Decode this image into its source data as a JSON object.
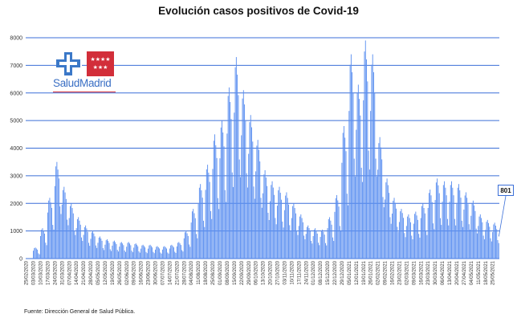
{
  "title": "Evolución casos positivos de Covid-19",
  "source": "Fuente: Dirección General de Salud Pública.",
  "logo": {
    "text": "SaludMadrid",
    "colors": {
      "cross_blue": "#3b78c8",
      "flag_red": "#d22e3a"
    }
  },
  "colors": {
    "bar": "#5b8ff0",
    "gridline": "#3b6fd8",
    "axis_text": "#333333"
  },
  "chart_data": {
    "type": "bar",
    "title": "Evolución casos positivos de Covid-19",
    "xlabel": "",
    "ylabel": "",
    "ylim": [
      0,
      8000
    ],
    "yticks": [
      "0",
      "1000",
      "2000",
      "3000",
      "4000",
      "5000",
      "6000",
      "7000",
      "8000"
    ],
    "x_tick_labels": [
      "25/02/2020",
      "03/03/2020",
      "10/03/2020",
      "17/03/2020",
      "24/03/2020",
      "31/03/2020",
      "07/04/2020",
      "14/04/2020",
      "21/04/2020",
      "28/04/2020",
      "05/05/2020",
      "12/05/2020",
      "19/05/2020",
      "26/05/2020",
      "02/06/2020",
      "09/06/2020",
      "16/06/2020",
      "23/06/2020",
      "30/06/2020",
      "07/07/2020",
      "14/07/2020",
      "21/07/2020",
      "28/07/2020",
      "04/08/2020",
      "11/08/2020",
      "18/08/2020",
      "25/08/2020",
      "01/09/2020",
      "08/09/2020",
      "15/09/2020",
      "22/09/2020",
      "29/09/2020",
      "06/10/2020",
      "13/10/2020",
      "20/10/2020",
      "27/10/2020",
      "03/11/2020",
      "10/11/2020",
      "17/11/2020",
      "24/11/2020",
      "01/12/2020",
      "08/12/2020",
      "15/12/2020",
      "22/12/2020",
      "29/12/2020",
      "05/01/2021",
      "12/01/2021",
      "19/01/2021",
      "26/01/2021",
      "02/02/2021",
      "09/02/2021",
      "16/02/2021",
      "23/02/2021",
      "02/03/2021",
      "09/03/2021",
      "16/03/2021",
      "23/03/2021",
      "30/03/2021",
      "06/04/2021",
      "13/04/2021",
      "20/04/2021",
      "27/04/2021",
      "04/05/2021",
      "11/05/2021",
      "18/05/2021",
      "25/05/2021"
    ],
    "weekly_peaks": [
      5,
      400,
      1100,
      2200,
      3500,
      2600,
      2000,
      1500,
      1200,
      1000,
      800,
      700,
      650,
      600,
      600,
      550,
      500,
      500,
      450,
      450,
      500,
      600,
      1000,
      1800,
      2700,
      3400,
      4500,
      5000,
      6200,
      7300,
      6100,
      5200,
      4300,
      3200,
      2800,
      2600,
      2400,
      2000,
      1600,
      1200,
      1100,
      1050,
      1500,
      2300,
      4800,
      7400,
      6300,
      7900,
      7400,
      4400,
      2900,
      2200,
      1800,
      1600,
      1700,
      2000,
      2500,
      2900,
      2800,
      2800,
      2700,
      2400,
      2100,
      1600,
      1400,
      1300
    ],
    "weekly_lows": [
      0,
      100,
      350,
      800,
      1200,
      900,
      600,
      450,
      300,
      250,
      200,
      180,
      170,
      160,
      150,
      140,
      130,
      130,
      120,
      120,
      140,
      180,
      300,
      500,
      800,
      1000,
      1200,
      1400,
      1800,
      2000,
      1800,
      1500,
      1300,
      1000,
      900,
      800,
      700,
      600,
      500,
      400,
      350,
      350,
      450,
      700,
      1300,
      2000,
      2000,
      2200,
      2000,
      1300,
      900,
      700,
      550,
      500,
      550,
      600,
      750,
      850,
      850,
      850,
      800,
      750,
      650,
      500,
      450,
      400
    ],
    "last_value": 801,
    "last_value_label": "801"
  }
}
